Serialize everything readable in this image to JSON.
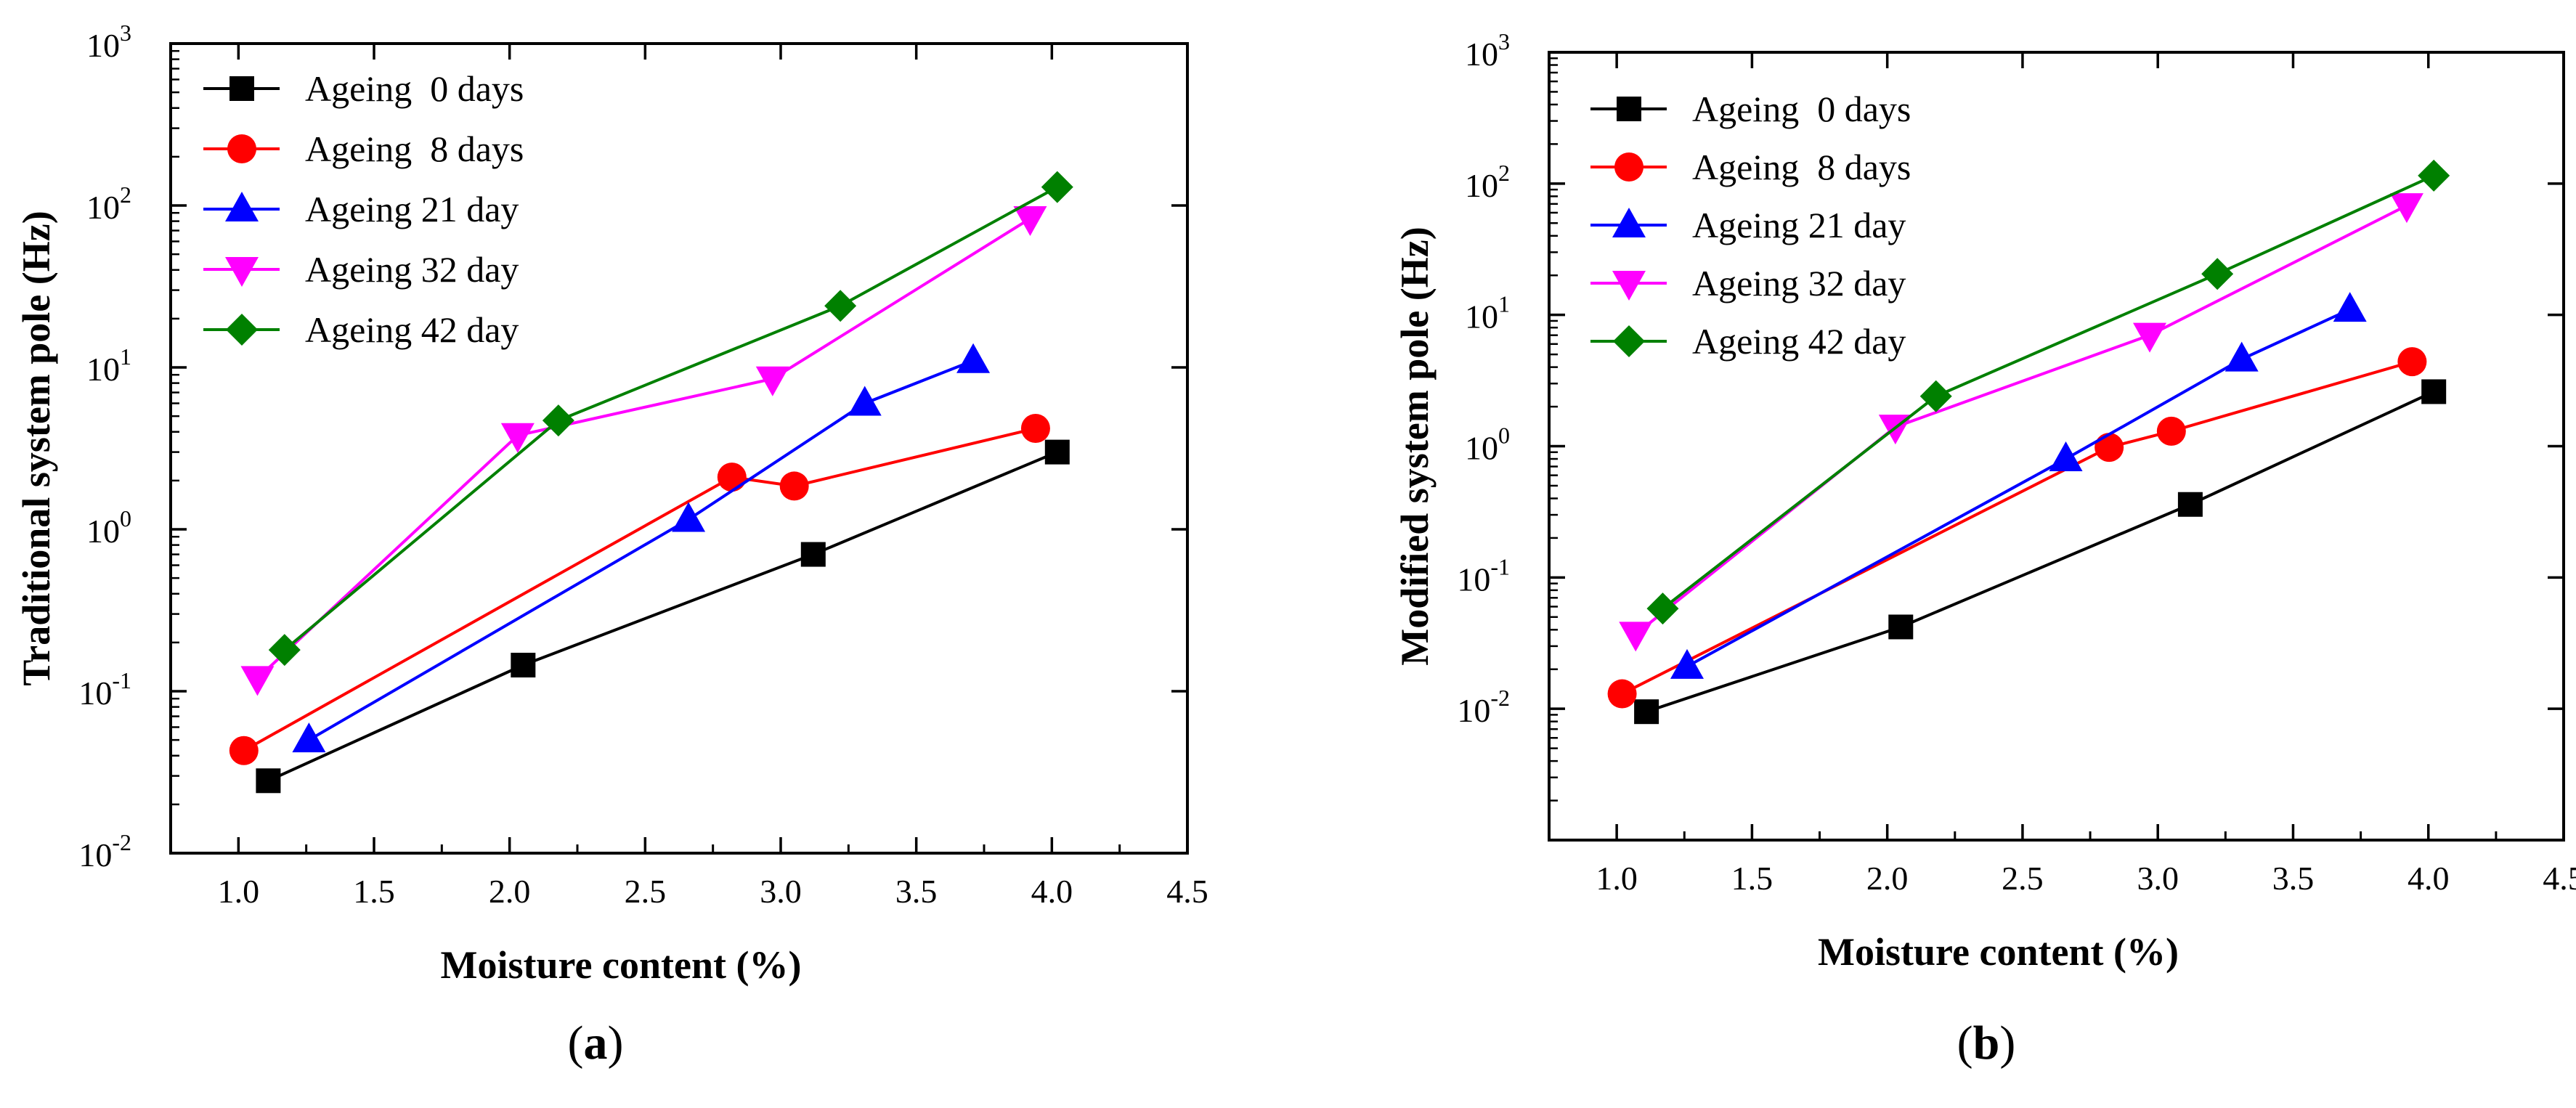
{
  "chart_data": [
    {
      "type": "line",
      "panel_label": "a",
      "xlabel": "Moisture content (%)",
      "ylabel": "Traditional system pole (Hz)",
      "xlim": [
        0.75,
        4.5
      ],
      "ylim": [
        0.01,
        1000
      ],
      "yscale": "log",
      "xticks": [
        "1.0",
        "1.5",
        "2.0",
        "2.5",
        "3.0",
        "3.5",
        "4.0",
        "4.5"
      ],
      "yticks": [
        {
          "base": "10",
          "exp": "-2"
        },
        {
          "base": "10",
          "exp": "-1"
        },
        {
          "base": "10",
          "exp": "0"
        },
        {
          "base": "10",
          "exp": "1"
        },
        {
          "base": "10",
          "exp": "2"
        },
        {
          "base": "10",
          "exp": "3"
        }
      ],
      "legend_position": "top-left",
      "series": [
        {
          "name": "Ageing  0 days",
          "color": "#000000",
          "marker": "square",
          "x": [
            1.11,
            2.05,
            3.12,
            4.02
          ],
          "y": [
            0.028,
            0.145,
            0.7,
            3.0
          ]
        },
        {
          "name": "Ageing  8 days",
          "color": "#ff0000",
          "marker": "circle",
          "x": [
            1.02,
            2.82,
            3.05,
            3.94
          ],
          "y": [
            0.043,
            2.1,
            1.85,
            4.2
          ]
        },
        {
          "name": "Ageing 21 day",
          "color": "#0000ff",
          "marker": "triangle-up",
          "x": [
            1.26,
            2.66,
            3.31,
            3.71
          ],
          "y": [
            0.05,
            1.15,
            6.0,
            11.0
          ]
        },
        {
          "name": "Ageing 32 day",
          "color": "#ff00ff",
          "marker": "triangle-down",
          "x": [
            1.07,
            2.03,
            2.97,
            3.92
          ],
          "y": [
            0.12,
            3.8,
            8.5,
            83.0
          ]
        },
        {
          "name": "Ageing 42 day",
          "color": "#008000",
          "marker": "diamond",
          "x": [
            1.17,
            2.18,
            3.22,
            4.02
          ],
          "y": [
            0.18,
            4.7,
            24.0,
            130.0
          ]
        }
      ]
    },
    {
      "type": "line",
      "panel_label": "b",
      "xlabel": "Moisture content (%)",
      "ylabel": "Modified system pole (Hz)",
      "xlim": [
        0.75,
        4.5
      ],
      "ylim": [
        0.001,
        1000
      ],
      "yscale": "log",
      "xticks": [
        "1.0",
        "1.5",
        "2.0",
        "2.5",
        "3.0",
        "3.5",
        "4.0",
        "4.5"
      ],
      "yticks": [
        {
          "base": "10",
          "exp": "-2"
        },
        {
          "base": "10",
          "exp": "-1"
        },
        {
          "base": "10",
          "exp": "0"
        },
        {
          "base": "10",
          "exp": "1"
        },
        {
          "base": "10",
          "exp": "2"
        },
        {
          "base": "10",
          "exp": "3"
        }
      ],
      "legend_position": "top-left",
      "series": [
        {
          "name": "Ageing  0 days",
          "color": "#000000",
          "marker": "square",
          "x": [
            1.11,
            2.05,
            3.12,
            4.02
          ],
          "y": [
            0.0095,
            0.042,
            0.36,
            2.6
          ]
        },
        {
          "name": "Ageing  8 days",
          "color": "#ff0000",
          "marker": "circle",
          "x": [
            1.02,
            2.82,
            3.05,
            3.94
          ],
          "y": [
            0.013,
            0.98,
            1.3,
            4.4
          ]
        },
        {
          "name": "Ageing 21 day",
          "color": "#0000ff",
          "marker": "triangle-up",
          "x": [
            1.26,
            2.66,
            3.31,
            3.71
          ],
          "y": [
            0.021,
            0.8,
            4.6,
            11.0
          ]
        },
        {
          "name": "Ageing 32 day",
          "color": "#ff00ff",
          "marker": "triangle-down",
          "x": [
            1.07,
            2.03,
            2.97,
            3.92
          ],
          "y": [
            0.037,
            1.4,
            7.0,
            68.0
          ]
        },
        {
          "name": "Ageing 42 day",
          "color": "#008000",
          "marker": "diamond",
          "x": [
            1.17,
            2.18,
            3.22,
            4.02
          ],
          "y": [
            0.058,
            2.4,
            20.5,
            115.0
          ]
        }
      ]
    }
  ]
}
